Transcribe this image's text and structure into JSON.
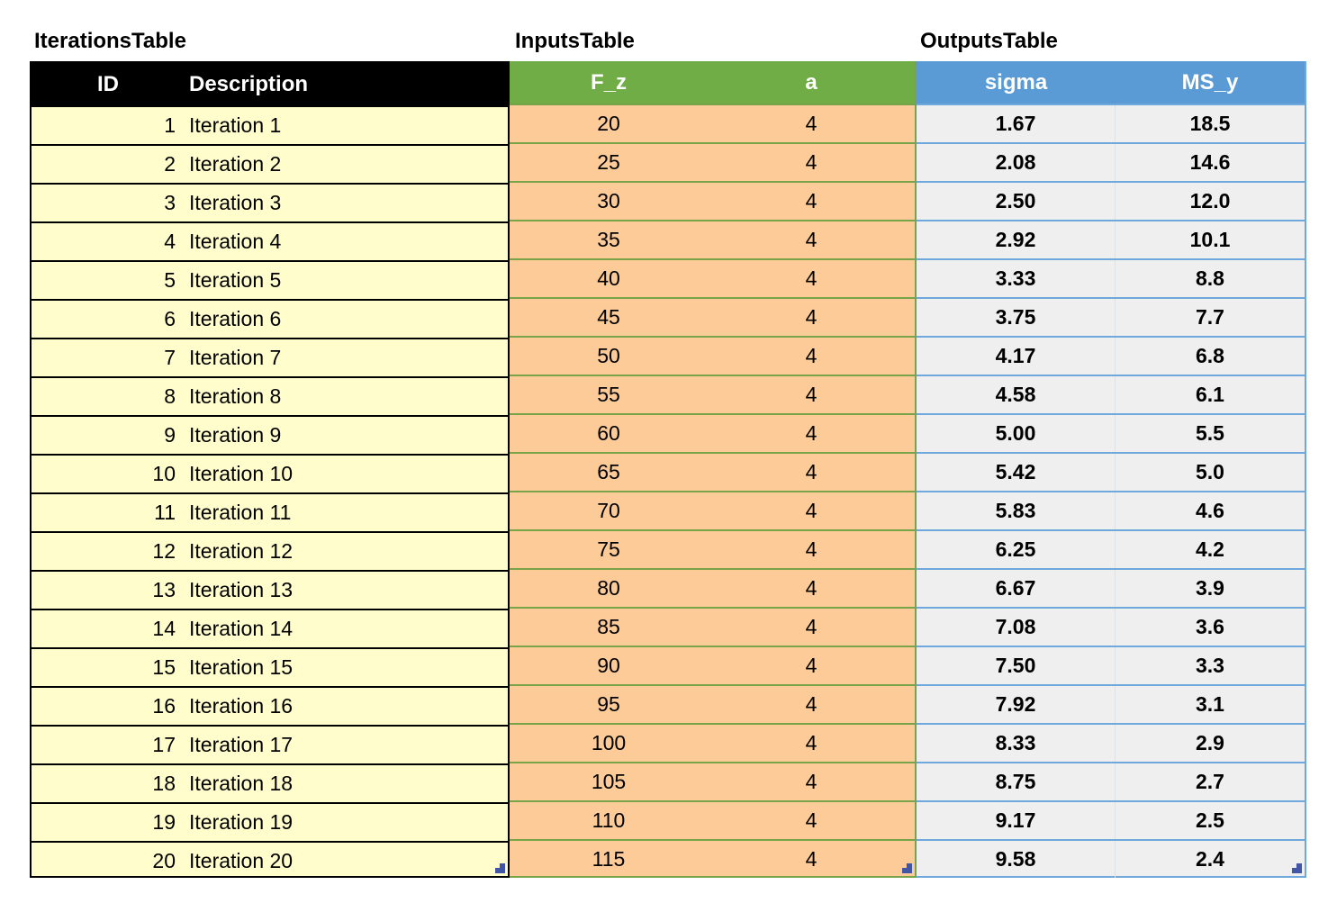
{
  "tables": [
    {
      "title": "IterationsTable",
      "columns": [
        "ID",
        "Description"
      ],
      "rows": [
        [
          "1",
          "Iteration 1"
        ],
        [
          "2",
          "Iteration 2"
        ],
        [
          "3",
          "Iteration 3"
        ],
        [
          "4",
          "Iteration 4"
        ],
        [
          "5",
          "Iteration 5"
        ],
        [
          "6",
          "Iteration 6"
        ],
        [
          "7",
          "Iteration 7"
        ],
        [
          "8",
          "Iteration 8"
        ],
        [
          "9",
          "Iteration 9"
        ],
        [
          "10",
          "Iteration 10"
        ],
        [
          "11",
          "Iteration 11"
        ],
        [
          "12",
          "Iteration 12"
        ],
        [
          "13",
          "Iteration 13"
        ],
        [
          "14",
          "Iteration 14"
        ],
        [
          "15",
          "Iteration 15"
        ],
        [
          "16",
          "Iteration 16"
        ],
        [
          "17",
          "Iteration 17"
        ],
        [
          "18",
          "Iteration 18"
        ],
        [
          "19",
          "Iteration 19"
        ],
        [
          "20",
          "Iteration 20"
        ]
      ]
    },
    {
      "title": "InputsTable",
      "columns": [
        "F_z",
        "a"
      ],
      "rows": [
        [
          "20",
          "4"
        ],
        [
          "25",
          "4"
        ],
        [
          "30",
          "4"
        ],
        [
          "35",
          "4"
        ],
        [
          "40",
          "4"
        ],
        [
          "45",
          "4"
        ],
        [
          "50",
          "4"
        ],
        [
          "55",
          "4"
        ],
        [
          "60",
          "4"
        ],
        [
          "65",
          "4"
        ],
        [
          "70",
          "4"
        ],
        [
          "75",
          "4"
        ],
        [
          "80",
          "4"
        ],
        [
          "85",
          "4"
        ],
        [
          "90",
          "4"
        ],
        [
          "95",
          "4"
        ],
        [
          "100",
          "4"
        ],
        [
          "105",
          "4"
        ],
        [
          "110",
          "4"
        ],
        [
          "115",
          "4"
        ]
      ]
    },
    {
      "title": "OutputsTable",
      "columns": [
        "sigma",
        "MS_y"
      ],
      "rows": [
        [
          "1.67",
          "18.5"
        ],
        [
          "2.08",
          "14.6"
        ],
        [
          "2.50",
          "12.0"
        ],
        [
          "2.92",
          "10.1"
        ],
        [
          "3.33",
          "8.8"
        ],
        [
          "3.75",
          "7.7"
        ],
        [
          "4.17",
          "6.8"
        ],
        [
          "4.58",
          "6.1"
        ],
        [
          "5.00",
          "5.5"
        ],
        [
          "5.42",
          "5.0"
        ],
        [
          "5.83",
          "4.6"
        ],
        [
          "6.25",
          "4.2"
        ],
        [
          "6.67",
          "3.9"
        ],
        [
          "7.08",
          "3.6"
        ],
        [
          "7.50",
          "3.3"
        ],
        [
          "7.92",
          "3.1"
        ],
        [
          "8.33",
          "2.9"
        ],
        [
          "8.75",
          "2.7"
        ],
        [
          "9.17",
          "2.5"
        ],
        [
          "9.58",
          "2.4"
        ]
      ]
    }
  ],
  "colors": {
    "iterations_header_bg": "#000000",
    "iterations_row_bg": "#FFFDCB",
    "iterations_border": "#000000",
    "inputs_header_bg": "#70AD47",
    "inputs_row_bg": "#FCCB98",
    "inputs_border": "#79A348",
    "outputs_header_bg": "#5B9BD5",
    "outputs_row_bg": "#EFEFEF",
    "outputs_border": "#6FA8DC",
    "outputs_col_divider": "#DCE1E6",
    "resize_handle": "#4156A4",
    "header_text": "#FFFFFF",
    "body_text": "#000000"
  }
}
